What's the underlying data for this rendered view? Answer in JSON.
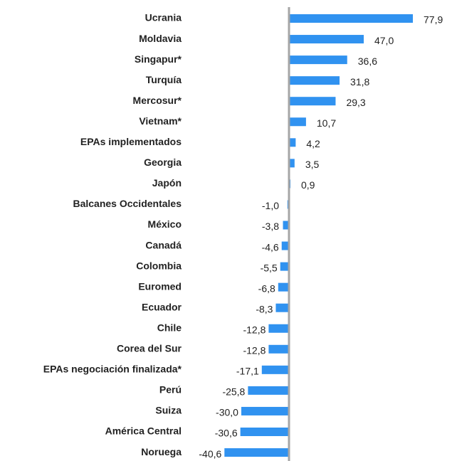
{
  "chart_data": {
    "type": "barh",
    "categories": [
      "Ucrania",
      "Moldavia",
      "Singapur*",
      "Turquía",
      "Mercosur*",
      "Vietnam*",
      "EPAs implementados",
      "Georgia",
      "Japón",
      "Balcanes Occidentales",
      "México",
      "Canadá",
      "Colombia",
      "Euromed",
      "Ecuador",
      "Chile",
      "Corea del Sur",
      "EPAs negociación finalizada*",
      "Perú",
      "Suiza",
      "América Central",
      "Noruega"
    ],
    "values": [
      77.9,
      47.0,
      36.6,
      31.8,
      29.3,
      10.7,
      4.2,
      3.5,
      0.9,
      -1.0,
      -3.8,
      -4.6,
      -5.5,
      -6.8,
      -8.3,
      -12.8,
      -12.8,
      -17.1,
      -25.8,
      -30.0,
      -30.6,
      -40.6
    ],
    "value_labels": [
      "77,9",
      "47,0",
      "36,6",
      "31,8",
      "29,3",
      "10,7",
      "4,2",
      "3,5",
      "0,9",
      "-1,0",
      "-3,8",
      "-4,6",
      "-5,5",
      "-6,8",
      "-8,3",
      "-12,8",
      "-12,8",
      "-17,1",
      "-25,8",
      "-30,0",
      "-30,6",
      "-40,6"
    ],
    "color": "#3092f0",
    "xlim": [
      -50,
      100
    ]
  }
}
